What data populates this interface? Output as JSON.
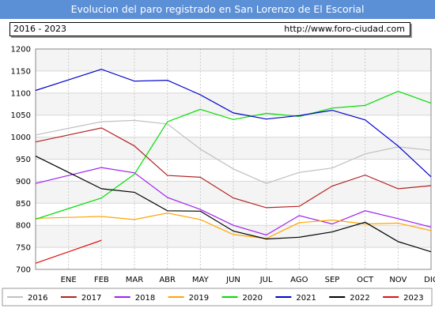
{
  "header": {
    "title": "Evolucion del paro registrado en San Lorenzo de El Escorial",
    "range_label": "2016 - 2023",
    "url": "http://www.foro-ciudad.com"
  },
  "chart_data": {
    "type": "line",
    "title": "Evolucion del paro registrado en San Lorenzo de El Escorial",
    "categories": [
      "ENE",
      "FEB",
      "MAR",
      "ABR",
      "MAY",
      "JUN",
      "JUL",
      "AGO",
      "SEP",
      "OCT",
      "NOV",
      "DIC"
    ],
    "ylim": [
      700,
      1200
    ],
    "yticks": [
      700,
      750,
      800,
      850,
      900,
      950,
      1000,
      1050,
      1100,
      1150,
      1200
    ],
    "grid": true,
    "legend_position": "bottom",
    "series": [
      {
        "name": "2016",
        "color": "#c0c0c0",
        "values": [
          1020,
          1035,
          1038,
          1030,
          973,
          928,
          895,
          920,
          930,
          962,
          978,
          970
        ]
      },
      {
        "name": "2017",
        "color": "#b22222",
        "values": [
          1005,
          1021,
          980,
          913,
          909,
          862,
          840,
          843,
          889,
          914,
          883,
          890
        ]
      },
      {
        "name": "2018",
        "color": "#a020f0",
        "values": [
          913,
          931,
          919,
          863,
          836,
          800,
          778,
          822,
          803,
          833,
          815,
          796
        ]
      },
      {
        "name": "2019",
        "color": "#ffa500",
        "values": [
          818,
          820,
          813,
          828,
          813,
          779,
          770,
          806,
          812,
          803,
          805,
          788
        ]
      },
      {
        "name": "2020",
        "color": "#00dd00",
        "values": [
          838,
          862,
          916,
          1035,
          1063,
          1040,
          1054,
          1047,
          1066,
          1072,
          1104,
          1077
        ]
      },
      {
        "name": "2021",
        "color": "#0000cd",
        "values": [
          1130,
          1154,
          1127,
          1129,
          1096,
          1055,
          1041,
          1049,
          1061,
          1039,
          980,
          910
        ]
      },
      {
        "name": "2022",
        "color": "#000000",
        "values": [
          920,
          883,
          875,
          833,
          832,
          787,
          769,
          773,
          785,
          807,
          763,
          740
        ]
      },
      {
        "name": "2023",
        "color": "#e01010",
        "values": [
          740,
          766,
          null,
          null,
          null,
          null,
          null,
          null,
          null,
          null,
          null,
          null
        ]
      }
    ]
  }
}
